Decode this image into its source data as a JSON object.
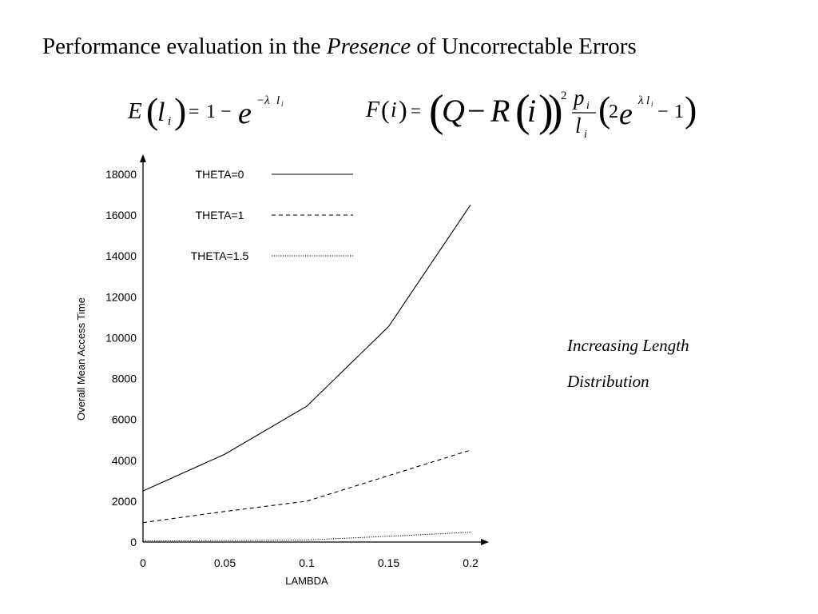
{
  "slide": {
    "title_before": "Performance evaluation in the ",
    "title_italic": "Presence",
    "title_after": " of Uncorrectable Errors",
    "formula_e": {
      "lhs_fn": "E",
      "lhs_var": "l",
      "lhs_sub": "i",
      "equals": "=",
      "one": "1",
      "minus": "−",
      "base": "e",
      "exponent": "−λ",
      "exponent_var": "l",
      "exponent_sub": "i"
    },
    "formula_f": {
      "lhs_fn": "F",
      "lhs_arg": "i",
      "equals": "=",
      "q": "Q",
      "minus": "−",
      "r": "R",
      "r_arg": "i",
      "power": "2",
      "numerator": "p",
      "numerator_sub": "i",
      "denominator": "l",
      "denominator_sub": "i",
      "two": "2",
      "base": "e",
      "exponent": "λ",
      "exponent_var": "l",
      "exponent_sub": "i",
      "tail_minus": "−",
      "tail_one": "1"
    },
    "notes": [
      "Increasing Length",
      "Distribution"
    ]
  },
  "chart_data": {
    "type": "line",
    "title": "",
    "xlabel": "LAMBDA",
    "ylabel": "Overall Mean Access Time",
    "x": [
      0,
      0.05,
      0.1,
      0.15,
      0.2
    ],
    "x_tick_labels": [
      "0",
      "0.05",
      "0.1",
      "0.15",
      "0.2"
    ],
    "y_ticks": [
      0,
      2000,
      4000,
      6000,
      8000,
      10000,
      12000,
      14000,
      16000,
      18000
    ],
    "ylim": [
      0,
      18000
    ],
    "xlim": [
      0,
      0.2
    ],
    "grid": false,
    "legend_position": "top-left inside plot",
    "series": [
      {
        "name": "THETA=0",
        "style": "solid",
        "values": [
          2500,
          4300,
          6650,
          10550,
          16500
        ]
      },
      {
        "name": "THETA=1",
        "style": "dashed",
        "values": [
          950,
          1500,
          2000,
          3250,
          4500
        ]
      },
      {
        "name": "THETA=1.5",
        "style": "dotted",
        "values": [
          50,
          75,
          100,
          280,
          480
        ]
      }
    ]
  }
}
